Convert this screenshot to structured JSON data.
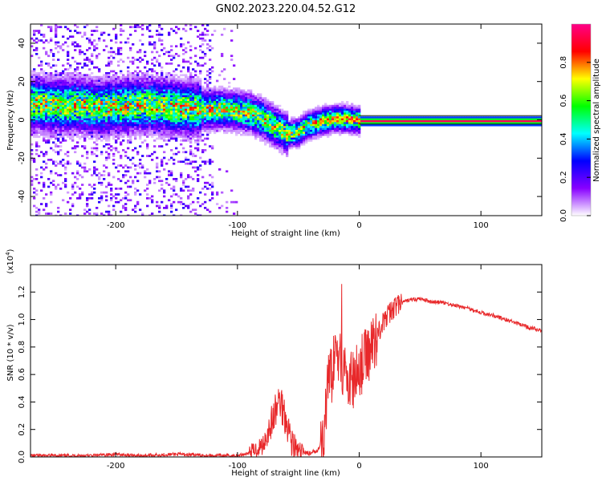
{
  "title": "GN02.2023.220.04.52.G12",
  "chart_data": [
    {
      "type": "heatmap",
      "xlabel": "Height of straight line (km)",
      "ylabel": "Frequency (Hz)",
      "xlim": [
        -270,
        150
      ],
      "ylim": [
        -50,
        50
      ],
      "x_ticks": [
        -200,
        -100,
        0,
        100
      ],
      "x_tick_labels": [
        "-200",
        "-100",
        "0",
        "100"
      ],
      "y_ticks": [
        -40,
        -20,
        0,
        20,
        40
      ],
      "y_tick_labels": [
        "-40",
        "-20",
        "0",
        "20",
        "40"
      ],
      "colorbar": {
        "label": "Normalized spectral amplitude",
        "range": [
          0,
          1
        ],
        "ticks": [
          0,
          0.2,
          0.4,
          0.6,
          0.8
        ],
        "tick_labels": [
          "0.0",
          "0.2",
          "0.4",
          "0.6",
          "0.8"
        ],
        "colors": [
          "#ffffff",
          "#8800ff",
          "#0000ff",
          "#00ffff",
          "#00ff00",
          "#ffff00",
          "#ff0000",
          "#ff0088"
        ]
      },
      "ridge_center_hz": [
        [
          -270,
          9
        ],
        [
          -250,
          8
        ],
        [
          -230,
          8
        ],
        [
          -210,
          7
        ],
        [
          -190,
          8
        ],
        [
          -170,
          8
        ],
        [
          -150,
          7
        ],
        [
          -130,
          6
        ],
        [
          -110,
          6
        ],
        [
          -100,
          5
        ],
        [
          -90,
          4
        ],
        [
          -80,
          1
        ],
        [
          -70,
          -3
        ],
        [
          -60,
          -7
        ],
        [
          -50,
          -6
        ],
        [
          -45,
          -3
        ],
        [
          -40,
          -2
        ],
        [
          -30,
          0
        ],
        [
          -20,
          1
        ],
        [
          -10,
          1
        ],
        [
          0,
          0
        ],
        [
          50,
          0
        ],
        [
          100,
          0
        ],
        [
          150,
          0
        ]
      ],
      "grid": false
    },
    {
      "type": "line",
      "xlabel": "Height of straight line (km)",
      "ylabel": "SNR (10 * v/v)",
      "y_multiplier_label": "(x10",
      "y_multiplier_exponent": "4",
      "y_multiplier_close": ")",
      "xlim": [
        -270,
        150
      ],
      "ylim": [
        0,
        1.4
      ],
      "x_ticks": [
        -200,
        -100,
        0,
        100
      ],
      "x_tick_labels": [
        "-200",
        "-100",
        "0",
        "100"
      ],
      "y_ticks": [
        0,
        0.2,
        0.4,
        0.6,
        0.8,
        1.0,
        1.2
      ],
      "y_tick_labels": [
        "0.0",
        "0.2",
        "0.4",
        "0.6",
        "0.8",
        "1.0",
        "1.2"
      ],
      "series": [
        {
          "color": "#e8282a",
          "x": [
            -270,
            -250,
            -220,
            -200,
            -180,
            -150,
            -120,
            -100,
            -90,
            -80,
            -75,
            -70,
            -65,
            -60,
            -55,
            -50,
            -45,
            -40,
            -35,
            -30,
            -28,
            -25,
            -22,
            -20,
            -15,
            -10,
            -5,
            0,
            5,
            10,
            15,
            20,
            25,
            30,
            40,
            50,
            60,
            70,
            80,
            90,
            100,
            110,
            120,
            130,
            140,
            150
          ],
          "y": [
            0.01,
            0.01,
            0.01,
            0.02,
            0.01,
            0.02,
            0.01,
            0.01,
            0.03,
            0.08,
            0.18,
            0.3,
            0.42,
            0.28,
            0.1,
            0.03,
            0.04,
            0.02,
            0.05,
            0.1,
            0.3,
            0.55,
            0.6,
            0.85,
            0.7,
            0.58,
            0.55,
            0.64,
            0.72,
            0.8,
            0.9,
            0.98,
            1.05,
            1.1,
            1.14,
            1.15,
            1.13,
            1.12,
            1.1,
            1.08,
            1.05,
            1.03,
            1.0,
            0.97,
            0.94,
            0.92
          ]
        }
      ],
      "grid": false
    }
  ]
}
